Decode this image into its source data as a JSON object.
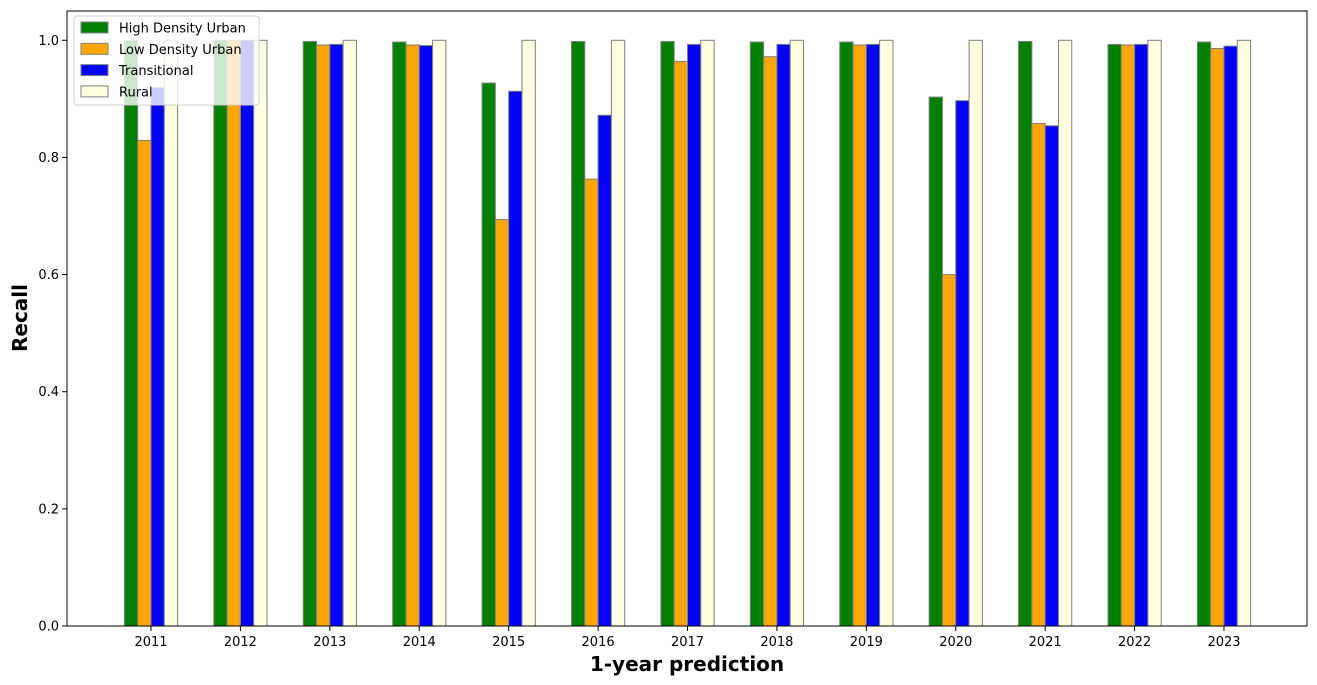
{
  "chart_data": {
    "type": "bar",
    "title": "",
    "xlabel": "1-year prediction",
    "ylabel": "Recall",
    "ylim": [
      0,
      1.05
    ],
    "yticks": [
      "0.0",
      "0.2",
      "0.4",
      "0.6",
      "0.8",
      "1.0"
    ],
    "grid": false,
    "legend_placement": "top-left",
    "categories": [
      "2011",
      "2012",
      "2013",
      "2014",
      "2015",
      "2016",
      "2017",
      "2018",
      "2019",
      "2020",
      "2021",
      "2022",
      "2023"
    ],
    "series": [
      {
        "name": "High Density Urban",
        "color": "#008000",
        "values": [
          1.0,
          1.0,
          0.998,
          0.997,
          0.927,
          0.998,
          0.998,
          0.997,
          0.997,
          0.903,
          0.998,
          0.993,
          0.997
        ]
      },
      {
        "name": "Low Density Urban",
        "color": "#FFA500",
        "values": [
          0.829,
          1.0,
          0.992,
          0.992,
          0.694,
          0.763,
          0.964,
          0.972,
          0.992,
          0.6,
          0.858,
          0.992,
          0.986
        ]
      },
      {
        "name": "Transitional",
        "color": "#0000FF",
        "values": [
          0.919,
          1.0,
          0.993,
          0.991,
          0.913,
          0.872,
          0.993,
          0.993,
          0.993,
          0.897,
          0.854,
          0.993,
          0.99
        ]
      },
      {
        "name": "Rural",
        "color": "#FFFFE0",
        "values": [
          1.0,
          1.0,
          1.0,
          1.0,
          1.0,
          1.0,
          1.0,
          1.0,
          1.0,
          1.0,
          1.0,
          1.0,
          1.0
        ]
      }
    ]
  }
}
